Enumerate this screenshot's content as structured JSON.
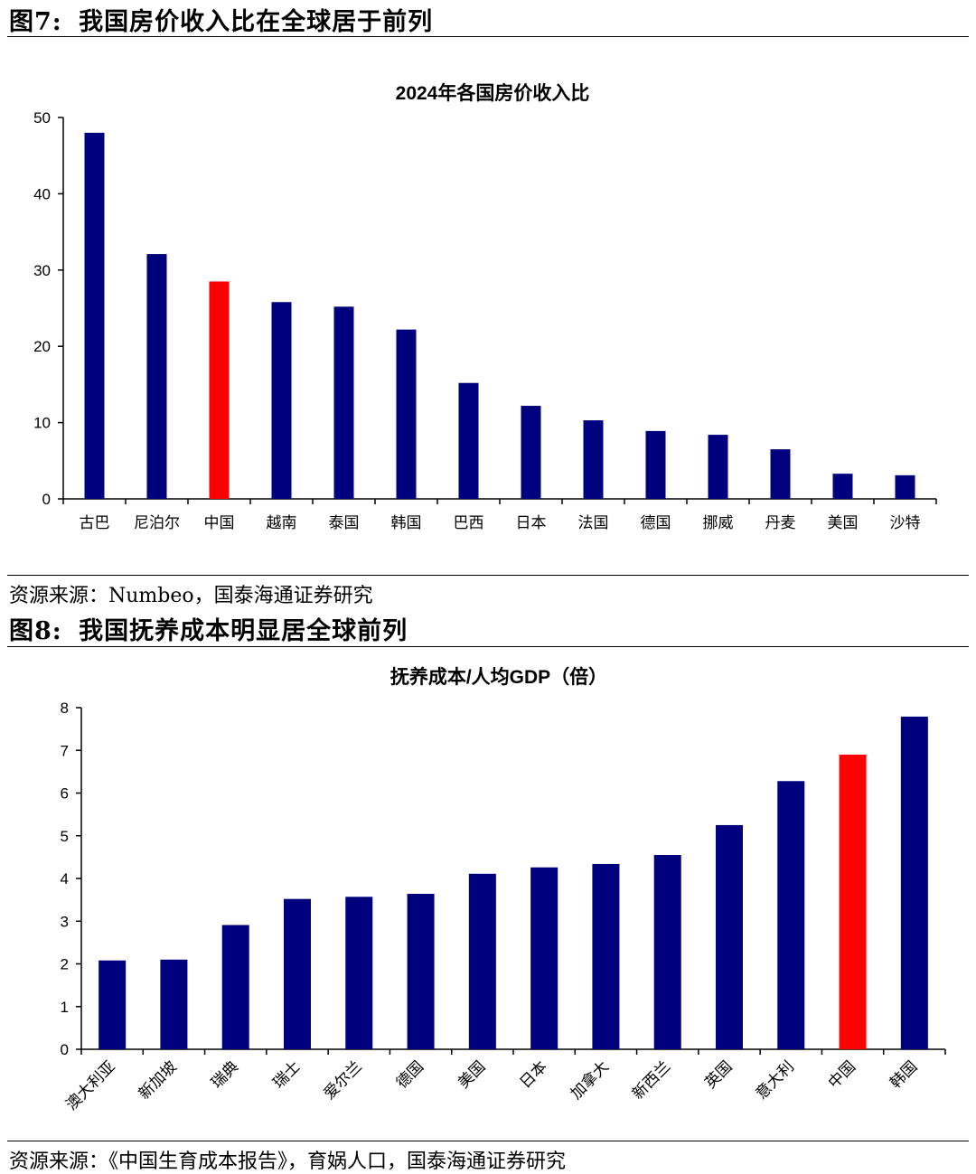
{
  "figures": [
    {
      "label": "图7:",
      "heading": "我国房价收入比在全球居于前列",
      "source": "资源来源：Numbeo，国泰海通证券研究"
    },
    {
      "label": "图8:",
      "heading": "我国抚养成本明显居全球前列",
      "source": "资源来源：《中国生育成本报告》，育娲人口，国泰海通证券研究"
    }
  ],
  "colors": {
    "bar": "#00007f",
    "highlight": "#ff0000",
    "axis": "#000000"
  },
  "chart_data": [
    {
      "type": "bar",
      "title": "2024年各国房价收入比",
      "categories": [
        "古巴",
        "尼泊尔",
        "中国",
        "越南",
        "泰国",
        "韩国",
        "巴西",
        "日本",
        "法国",
        "德国",
        "挪威",
        "丹麦",
        "美国",
        "沙特"
      ],
      "values": [
        48.0,
        32.1,
        28.5,
        25.8,
        25.2,
        22.2,
        15.2,
        12.2,
        10.3,
        8.9,
        8.4,
        6.5,
        3.3,
        3.1
      ],
      "highlight": "中国",
      "ylim": [
        0,
        50
      ],
      "yticks": [
        0,
        10,
        20,
        30,
        40,
        50
      ],
      "xlabel": "",
      "ylabel": "",
      "grid": false,
      "legend": false
    },
    {
      "type": "bar",
      "title": "抚养成本/人均GDP（倍）",
      "categories": [
        "澳大利亚",
        "新加坡",
        "瑞典",
        "瑞士",
        "爱尔兰",
        "德国",
        "美国",
        "日本",
        "加拿大",
        "新西兰",
        "英国",
        "意大利",
        "中国",
        "韩国"
      ],
      "values": [
        2.08,
        2.1,
        2.91,
        3.52,
        3.57,
        3.64,
        4.11,
        4.26,
        4.34,
        4.55,
        5.25,
        6.28,
        6.9,
        7.79
      ],
      "highlight": "中国",
      "ylim": [
        0,
        8
      ],
      "yticks": [
        0,
        1,
        2,
        3,
        4,
        5,
        6,
        7,
        8
      ],
      "xlabel": "",
      "ylabel": "",
      "grid": false,
      "legend": false
    }
  ]
}
